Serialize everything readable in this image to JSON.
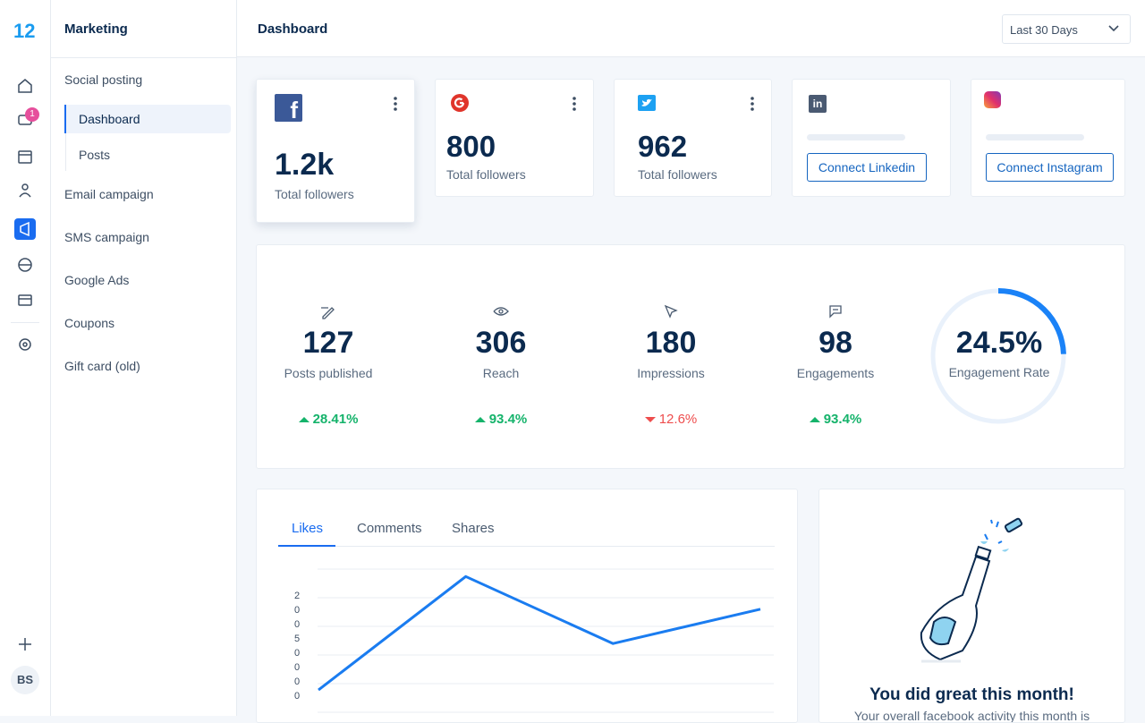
{
  "app": {
    "logo": "12",
    "badge": "1",
    "avatar": "BS"
  },
  "sidebar": {
    "title": "Marketing",
    "section": "Social posting",
    "subitems": [
      "Dashboard",
      "Posts"
    ],
    "items": [
      "Email campaign",
      "SMS campaign",
      "Google Ads",
      "Coupons",
      "Gift card (old)"
    ]
  },
  "header": {
    "title": "Dashboard",
    "range": "Last 30 Days"
  },
  "cards": [
    {
      "value": "1.2k",
      "label": "Total followers"
    },
    {
      "value": 800,
      "label": "Total followers"
    },
    {
      "value": 962,
      "label": "Total followers"
    },
    {
      "button": "Connect Linkedin"
    },
    {
      "button": "Connect Instagram"
    }
  ],
  "stats": {
    "items": [
      {
        "value": 127,
        "label": "Posts published",
        "change": "28.41%"
      },
      {
        "value": 306,
        "label": "Reach",
        "change": "93.4%"
      },
      {
        "value": 180,
        "label": "Impressions",
        "change": "12.6%"
      },
      {
        "value": 98,
        "label": "Engagements",
        "change": "93.4%"
      }
    ],
    "rate": {
      "value": 24.5,
      "value_label": "24.5%",
      "label": "Engagement Rate"
    }
  },
  "tabs": [
    "Likes",
    "Comments",
    "Shares"
  ],
  "likes_chart": {
    "type": "line",
    "values": [
      39,
      237,
      120,
      180
    ],
    "ylim": [
      0,
      250
    ],
    "axis_glyphs": [
      "2",
      "0",
      "0",
      "5",
      "0",
      "0",
      "0",
      "0"
    ],
    "color": "#1a7cf0"
  },
  "celebration": {
    "title": "You did great this month!",
    "text": "Your overall facebook activity this month is"
  }
}
